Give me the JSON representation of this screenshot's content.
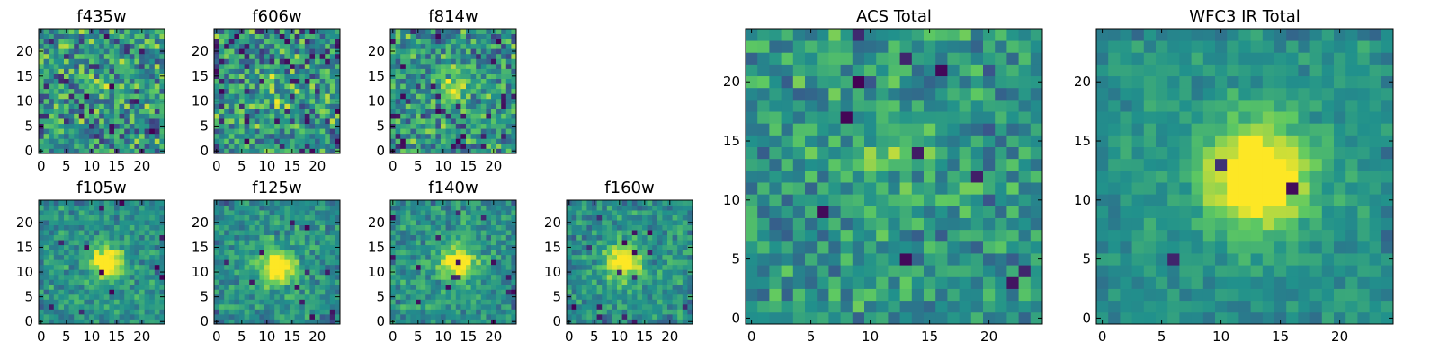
{
  "chart_data": [
    {
      "type": "heatmap",
      "title": "f435w",
      "xticks": [
        "0",
        "5",
        "10",
        "15",
        "20"
      ],
      "yticks": [
        "0",
        "5",
        "10",
        "15",
        "20"
      ],
      "xlim": [
        0,
        25
      ],
      "ylim": [
        0,
        25
      ],
      "seed": 11,
      "source": {
        "sigma": 3,
        "amplitude": 0.1,
        "center_x": 12,
        "center_y": 12
      },
      "noise": 0.55,
      "outlier_rate": 0.05
    },
    {
      "type": "heatmap",
      "title": "f606w",
      "xticks": [
        "0",
        "5",
        "10",
        "15",
        "20"
      ],
      "yticks": [
        "0",
        "5",
        "10",
        "15",
        "20"
      ],
      "xlim": [
        0,
        25
      ],
      "ylim": [
        0,
        25
      ],
      "seed": 23,
      "source": {
        "sigma": 3,
        "amplitude": 0.1,
        "center_x": 12,
        "center_y": 12
      },
      "noise": 0.55,
      "outlier_rate": 0.05
    },
    {
      "type": "heatmap",
      "title": "f814w",
      "xticks": [
        "0",
        "5",
        "10",
        "15",
        "20"
      ],
      "yticks": [
        "0",
        "5",
        "10",
        "15",
        "20"
      ],
      "xlim": [
        0,
        25
      ],
      "ylim": [
        0,
        25
      ],
      "seed": 37,
      "source": {
        "sigma": 2.5,
        "amplitude": 0.3,
        "center_x": 12,
        "center_y": 12
      },
      "noise": 0.5,
      "outlier_rate": 0.04
    },
    {
      "type": "heatmap",
      "title": "f105w",
      "xticks": [
        "0",
        "5",
        "10",
        "15",
        "20"
      ],
      "yticks": [
        "0",
        "5",
        "10",
        "15",
        "20"
      ],
      "xlim": [
        0,
        25
      ],
      "ylim": [
        0,
        25
      ],
      "seed": 41,
      "source": {
        "sigma": 2.2,
        "amplitude": 0.65,
        "center_x": 13,
        "center_y": 12
      },
      "noise": 0.28,
      "outlier_rate": 0.015
    },
    {
      "type": "heatmap",
      "title": "f125w",
      "xticks": [
        "0",
        "5",
        "10",
        "15",
        "20"
      ],
      "yticks": [
        "0",
        "5",
        "10",
        "15",
        "20"
      ],
      "xlim": [
        0,
        25
      ],
      "ylim": [
        0,
        25
      ],
      "seed": 53,
      "source": {
        "sigma": 2.5,
        "amplitude": 0.6,
        "center_x": 12,
        "center_y": 11
      },
      "noise": 0.3,
      "outlier_rate": 0.015
    },
    {
      "type": "heatmap",
      "title": "f140w",
      "xticks": [
        "0",
        "5",
        "10",
        "15",
        "20"
      ],
      "yticks": [
        "0",
        "5",
        "10",
        "15",
        "20"
      ],
      "xlim": [
        0,
        25
      ],
      "ylim": [
        0,
        25
      ],
      "seed": 67,
      "source": {
        "sigma": 2.5,
        "amplitude": 0.6,
        "center_x": 13,
        "center_y": 12
      },
      "noise": 0.3,
      "outlier_rate": 0.02
    },
    {
      "type": "heatmap",
      "title": "f160w",
      "xticks": [
        "0",
        "5",
        "10",
        "15",
        "20"
      ],
      "yticks": [
        "0",
        "5",
        "10",
        "15",
        "20"
      ],
      "xlim": [
        0,
        25
      ],
      "ylim": [
        0,
        25
      ],
      "seed": 79,
      "source": {
        "sigma": 2.5,
        "amplitude": 0.6,
        "center_x": 11,
        "center_y": 12
      },
      "noise": 0.3,
      "outlier_rate": 0.02
    },
    {
      "type": "heatmap",
      "title": "ACS Total",
      "xticks": [
        "0",
        "5",
        "10",
        "15",
        "20"
      ],
      "yticks": [
        "0",
        "5",
        "10",
        "15",
        "20"
      ],
      "xlim": [
        0,
        25
      ],
      "ylim": [
        0,
        25
      ],
      "seed": 97,
      "source": {
        "sigma": 3,
        "amplitude": 0.15,
        "center_x": 12,
        "center_y": 12
      },
      "noise": 0.38,
      "outlier_rate": 0.02
    },
    {
      "type": "heatmap",
      "title": "WFC3 IR Total",
      "xticks": [
        "0",
        "5",
        "10",
        "15",
        "20"
      ],
      "yticks": [
        "0",
        "5",
        "10",
        "15",
        "20"
      ],
      "xlim": [
        0,
        25
      ],
      "ylim": [
        0,
        25
      ],
      "seed": 113,
      "source": {
        "sigma": 3,
        "amplitude": 0.75,
        "center_x": 13,
        "center_y": 12
      },
      "noise": 0.18,
      "outlier_rate": 0.01
    }
  ],
  "colormap": "viridis",
  "colormap_stops": [
    "#440154",
    "#3b528b",
    "#21918c",
    "#5ec962",
    "#fde725"
  ]
}
